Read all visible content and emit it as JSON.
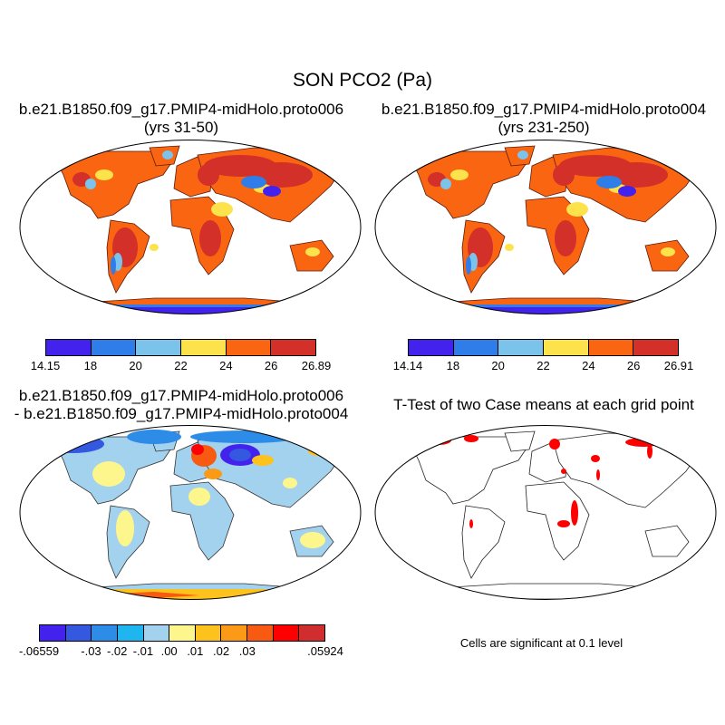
{
  "title": "SON PCO2 (Pa)",
  "panels": [
    {
      "line1": "b.e21.B1850.f09_g17.PMIP4-midHolo.proto006",
      "line2": "(yrs 31-50)",
      "colorbar": {
        "colors": [
          "#4422ee",
          "#2f7de8",
          "#7cc3ec",
          "#fde34b",
          "#fa6512",
          "#d33029"
        ],
        "labels": [
          "14.15",
          "18",
          "20",
          "22",
          "24",
          "26",
          "26.89"
        ]
      }
    },
    {
      "line1": "b.e21.B1850.f09_g17.PMIP4-midHolo.proto004",
      "line2": "(yrs 231-250)",
      "colorbar": {
        "colors": [
          "#4422ee",
          "#2f7de8",
          "#7cc3ec",
          "#fde34b",
          "#fa6512",
          "#d33029"
        ],
        "labels": [
          "14.14",
          "18",
          "20",
          "22",
          "24",
          "26",
          "26.91"
        ]
      }
    },
    {
      "line1": "b.e21.B1850.f09_g17.PMIP4-midHolo.proto006",
      "line2": "- b.e21.B1850.f09_g17.PMIP4-midHolo.proto004",
      "colorbar": {
        "colors": [
          "#4422ee",
          "#3558e0",
          "#2d8ce8",
          "#1fb5ee",
          "#a3d2ee",
          "#fdf68c",
          "#fdc21c",
          "#fb9a16",
          "#f75a10",
          "#ff0000",
          "#d02e2e"
        ],
        "labels": [
          "-.06559",
          "-.03",
          "-.02",
          "-.01",
          ".00",
          ".01",
          ".02",
          ".03",
          ".05924"
        ]
      }
    },
    {
      "line1": "T-Test of two Case means at each grid point",
      "note": "Cells are significant at 0.1 level"
    }
  ],
  "map_colors": {
    "land_base": "#fa6512",
    "warm": "#d33029",
    "yellow": "#fde34b",
    "lightblue": "#7cc3ec",
    "midblue": "#2f7de8",
    "deepblue": "#4422ee",
    "diff_base": "#a3d2ee",
    "diff_yellow": "#fdf68c",
    "diff_red": "#ff0000",
    "signif": "#ff0000"
  }
}
